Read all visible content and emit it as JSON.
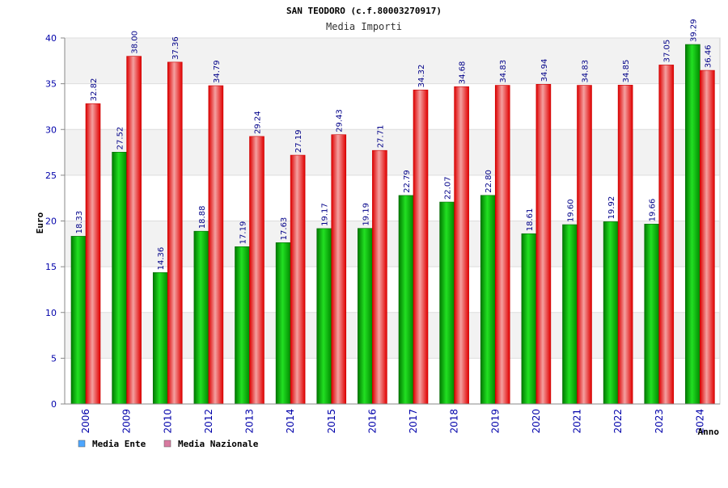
{
  "chart_data": {
    "type": "bar",
    "title": "SAN TEODORO (c.f.80003270917)",
    "subtitle": "Media Importi",
    "xlabel": "Anno",
    "ylabel": "Euro",
    "ylim": [
      0,
      40
    ],
    "yticks": [
      0,
      5,
      10,
      15,
      20,
      25,
      30,
      35,
      40
    ],
    "grid": true,
    "legend_position": "bottom-left",
    "categories": [
      "2006",
      "2009",
      "2010",
      "2012",
      "2013",
      "2014",
      "2015",
      "2016",
      "2017",
      "2018",
      "2019",
      "2020",
      "2021",
      "2022",
      "2023",
      "2024"
    ],
    "series": [
      {
        "name": "Media Ente",
        "color": "#00bb00",
        "legend_color": "#4da6ff",
        "values": [
          18.33,
          27.52,
          14.36,
          18.88,
          17.19,
          17.63,
          19.17,
          19.19,
          22.79,
          22.07,
          22.8,
          18.61,
          19.6,
          19.92,
          19.66,
          39.29
        ],
        "labels": [
          "18.33",
          "27.52",
          "14.36",
          "18.88",
          "17.19",
          "17.63",
          "19.17",
          "19.19",
          "22.79",
          "22.07",
          "22.80",
          "18.61",
          "19.60",
          "19.92",
          "19.66",
          "39.29"
        ]
      },
      {
        "name": "Media Nazionale",
        "color": "#ee1111",
        "legend_color": "#d87aa0",
        "values": [
          32.82,
          38.0,
          37.36,
          34.79,
          29.24,
          27.19,
          29.43,
          27.71,
          34.32,
          34.68,
          34.83,
          34.94,
          34.83,
          34.85,
          37.05,
          36.46
        ],
        "labels": [
          "32.82",
          "38.00",
          "37.36",
          "34.79",
          "29.24",
          "27.19",
          "29.43",
          "27.71",
          "34.32",
          "34.68",
          "34.83",
          "34.94",
          "34.83",
          "34.85",
          "37.05",
          "36.46"
        ]
      }
    ]
  }
}
